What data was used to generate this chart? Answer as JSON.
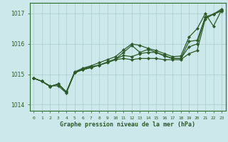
{
  "title": "Graphe pression niveau de la mer (hPa)",
  "bg_color": "#cce8ea",
  "grid_color": "#aacccc",
  "line_color": "#2d5a27",
  "border_color": "#2d6e2d",
  "x_labels": [
    "0",
    "1",
    "2",
    "3",
    "4",
    "5",
    "6",
    "7",
    "8",
    "9",
    "10",
    "11",
    "12",
    "13",
    "14",
    "15",
    "16",
    "17",
    "18",
    "19",
    "20",
    "21",
    "22",
    "23"
  ],
  "ylim": [
    1013.8,
    1017.35
  ],
  "xlim": [
    -0.5,
    23.5
  ],
  "yticks": [
    1014,
    1015,
    1016,
    1017
  ],
  "series": [
    [
      1014.87,
      1014.77,
      1014.6,
      1014.68,
      1014.42,
      1015.08,
      1015.2,
      1015.28,
      1015.38,
      1015.48,
      1015.58,
      1015.8,
      1016.0,
      1015.95,
      1015.85,
      1015.78,
      1015.68,
      1015.58,
      1015.6,
      1016.22,
      1016.5,
      1017.0,
      1016.58,
      1017.12
    ],
    [
      1014.87,
      1014.77,
      1014.6,
      1014.68,
      1014.42,
      1015.05,
      1015.15,
      1015.22,
      1015.3,
      1015.4,
      1015.5,
      1015.72,
      1015.95,
      1015.72,
      1015.82,
      1015.72,
      1015.6,
      1015.52,
      1015.52,
      1015.9,
      1016.0,
      1016.88,
      1016.98,
      1017.15
    ],
    [
      1014.87,
      1014.77,
      1014.6,
      1014.68,
      1014.42,
      1015.05,
      1015.15,
      1015.22,
      1015.3,
      1015.4,
      1015.5,
      1015.62,
      1015.58,
      1015.68,
      1015.72,
      1015.72,
      1015.62,
      1015.52,
      1015.52,
      1016.08,
      1016.12,
      1016.88,
      1016.98,
      1017.1
    ],
    [
      1014.87,
      1014.77,
      1014.62,
      1014.62,
      1014.38,
      1015.05,
      1015.18,
      1015.25,
      1015.3,
      1015.38,
      1015.48,
      1015.52,
      1015.48,
      1015.52,
      1015.52,
      1015.52,
      1015.48,
      1015.48,
      1015.48,
      1015.68,
      1015.78,
      1016.82,
      1016.98,
      1017.08
    ]
  ]
}
